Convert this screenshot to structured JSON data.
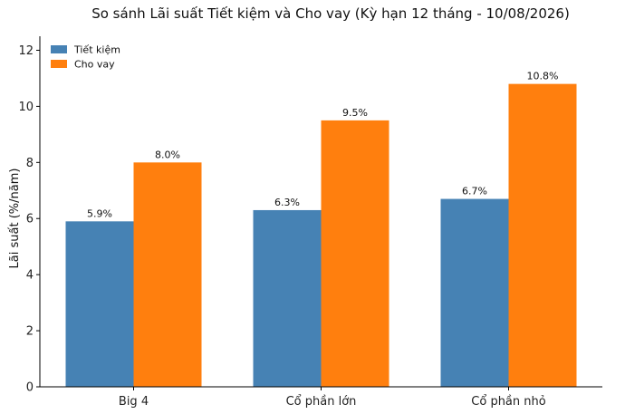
{
  "chart_data": {
    "type": "bar",
    "title": "So sánh Lãi suất Tiết kiệm và Cho vay (Kỳ hạn 12 tháng - 10/08/2026)",
    "xlabel": "",
    "ylabel": "Lãi suất (%/năm)",
    "ylim": [
      0,
      12.5
    ],
    "yticks": [
      0,
      2,
      4,
      6,
      8,
      10,
      12
    ],
    "categories": [
      "Big 4",
      "Cổ phần lớn",
      "Cổ phần nhỏ"
    ],
    "series": [
      {
        "name": "Tiết kiệm",
        "values": [
          5.9,
          6.3,
          6.7
        ],
        "labels": [
          "5.9%",
          "6.3%",
          "6.7%"
        ],
        "color": "#4682B4"
      },
      {
        "name": "Cho vay",
        "values": [
          8.0,
          9.5,
          10.8
        ],
        "labels": [
          "8.0%",
          "9.5%",
          "10.8%"
        ],
        "color": "#FF7F0E"
      }
    ],
    "legend_position": "top-left",
    "grid": false
  }
}
